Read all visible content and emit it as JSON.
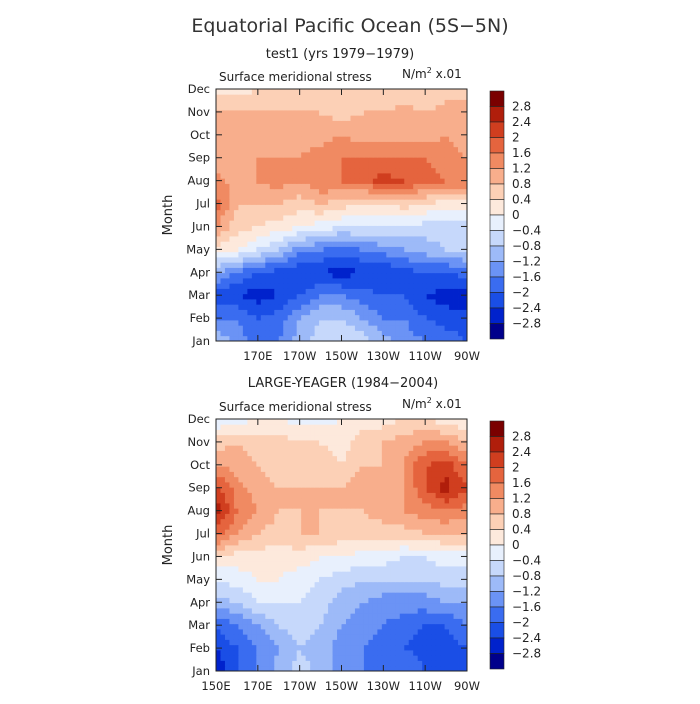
{
  "main_title": "Equatorial Pacific Ocean (5S−5N)",
  "color_scale": [
    "#00008b",
    "#0022cc",
    "#1a4ee6",
    "#3a6cf0",
    "#6b93f5",
    "#9dbaf8",
    "#c6d8fb",
    "#e8f0fd",
    "#fde9dc",
    "#fcd0b6",
    "#f8ae8c",
    "#f08a62",
    "#e5643e",
    "#d03e1f",
    "#b01e0b",
    "#7a0000"
  ],
  "chart_data": [
    {
      "type": "heatmap",
      "title": "test1 (yrs 1979−1979)",
      "variable": "Surface meridional stress",
      "units_prefix": "N/m",
      "units_sup": "2",
      "units_suffix": " x.01",
      "ylabel": "Month",
      "x_ticks": [
        "170E",
        "170W",
        "150W",
        "130W",
        "110W",
        "90W"
      ],
      "y_ticks": [
        "Jan",
        "Feb",
        "Mar",
        "Apr",
        "May",
        "Jun",
        "Jul",
        "Aug",
        "Sep",
        "Oct",
        "Nov",
        "Dec"
      ],
      "colorbar_labels": [
        "2.8",
        "2.4",
        "2",
        "1.6",
        "1.2",
        "0.8",
        "0.4",
        "0",
        "−0.4",
        "−0.8",
        "−1.2",
        "−1.6",
        "−2",
        "−2.4",
        "−2.8"
      ],
      "levels": [
        -2.8,
        -2.4,
        -2.0,
        -1.6,
        -1.2,
        -0.8,
        -0.4,
        0,
        0.4,
        0.8,
        1.2,
        1.6,
        2.0,
        2.4,
        2.8
      ],
      "lon_range": [
        150,
        270
      ],
      "values": [
        [
          -0.8,
          -1.4,
          -1.8,
          -1.6,
          -1.0,
          -0.6,
          -0.4,
          -0.6,
          -1.0,
          -1.4,
          -1.6,
          -1.8,
          -2.0
        ],
        [
          -1.8,
          -1.6,
          -2.0,
          -1.8,
          -1.2,
          -0.8,
          -0.8,
          -1.2,
          -1.6,
          -1.6,
          -2.0,
          -2.2,
          -2.2
        ],
        [
          -2.2,
          -2.4,
          -2.6,
          -2.4,
          -2.0,
          -1.6,
          -1.6,
          -1.8,
          -2.0,
          -2.0,
          -2.4,
          -2.6,
          -2.8
        ],
        [
          -1.2,
          -1.6,
          -2.0,
          -2.2,
          -2.4,
          -2.4,
          -2.6,
          -2.4,
          -2.4,
          -2.2,
          -2.0,
          -2.0,
          -1.8
        ],
        [
          0.2,
          0.0,
          -0.4,
          -0.8,
          -1.4,
          -1.6,
          -1.8,
          -1.6,
          -1.4,
          -1.2,
          -1.0,
          -0.8,
          -0.6
        ],
        [
          1.2,
          0.6,
          0.4,
          0.2,
          0.0,
          -0.2,
          -0.4,
          -0.4,
          -0.4,
          -0.4,
          -0.6,
          -0.6,
          -0.6
        ],
        [
          1.8,
          0.8,
          0.8,
          0.8,
          0.6,
          0.8,
          0.6,
          0.4,
          0.4,
          0.6,
          0.4,
          0.2,
          0.2
        ],
        [
          1.4,
          1.0,
          1.2,
          1.4,
          1.2,
          1.6,
          1.6,
          1.8,
          2.2,
          2.0,
          1.8,
          1.6,
          1.6
        ],
        [
          1.0,
          0.8,
          1.2,
          1.2,
          1.2,
          1.4,
          1.6,
          1.6,
          1.6,
          1.6,
          1.6,
          1.4,
          1.2
        ],
        [
          0.8,
          1.0,
          1.0,
          1.2,
          1.0,
          1.0,
          1.2,
          1.0,
          1.0,
          1.0,
          1.0,
          1.2,
          1.0
        ],
        [
          0.8,
          0.8,
          0.8,
          0.8,
          0.8,
          0.8,
          0.6,
          0.8,
          0.8,
          1.0,
          0.8,
          1.0,
          1.0
        ],
        [
          0.2,
          0.2,
          0.4,
          0.4,
          0.4,
          0.4,
          0.4,
          0.4,
          0.4,
          0.4,
          0.4,
          0.6,
          0.6
        ]
      ]
    },
    {
      "type": "heatmap",
      "title": "LARGE-YEAGER (1984−2004)",
      "variable": "Surface meridional stress",
      "units_prefix": "N/m",
      "units_sup": "2",
      "units_suffix": " x.01",
      "ylabel": "Month",
      "x_ticks": [
        "150E",
        "170E",
        "170W",
        "150W",
        "130W",
        "110W",
        "90W"
      ],
      "y_ticks": [
        "Jan",
        "Feb",
        "Mar",
        "Apr",
        "May",
        "Jun",
        "Jul",
        "Aug",
        "Sep",
        "Oct",
        "Nov",
        "Dec"
      ],
      "colorbar_labels": [
        "2.8",
        "2.4",
        "2",
        "1.6",
        "1.2",
        "0.8",
        "0.4",
        "0",
        "−0.4",
        "−0.8",
        "−1.2",
        "−1.6",
        "−2",
        "−2.4",
        "−2.8"
      ],
      "levels": [
        -2.8,
        -2.4,
        -2.0,
        -1.6,
        -1.2,
        -0.8,
        -0.4,
        0,
        0.4,
        0.8,
        1.2,
        1.6,
        2.0,
        2.4,
        2.8
      ],
      "lon_range": [
        150,
        270
      ],
      "values": [
        [
          -2.8,
          -2.0,
          -1.6,
          -1.0,
          -0.6,
          -1.0,
          -1.4,
          -1.6,
          -1.6,
          -1.6,
          -2.0,
          -2.2,
          -2.0
        ],
        [
          -2.4,
          -2.0,
          -1.6,
          -1.2,
          -0.8,
          -1.0,
          -1.4,
          -1.6,
          -1.8,
          -2.0,
          -2.2,
          -2.2,
          -2.0
        ],
        [
          -2.0,
          -1.6,
          -1.2,
          -0.8,
          -0.6,
          -0.8,
          -1.2,
          -1.4,
          -1.6,
          -1.8,
          -2.0,
          -2.0,
          -1.6
        ],
        [
          -1.0,
          -0.8,
          -0.4,
          -0.4,
          -0.4,
          -0.6,
          -1.0,
          -1.2,
          -1.4,
          -1.4,
          -1.4,
          -1.2,
          -1.2
        ],
        [
          -0.4,
          -0.2,
          0.0,
          0.0,
          -0.2,
          -0.4,
          -0.6,
          -0.8,
          -0.8,
          -0.8,
          -0.8,
          -0.6,
          -0.6
        ],
        [
          0.4,
          0.2,
          0.2,
          0.2,
          0.2,
          0.0,
          0.0,
          -0.2,
          -0.2,
          -0.4,
          -0.4,
          -0.2,
          -0.2
        ],
        [
          1.8,
          1.2,
          0.8,
          0.6,
          0.8,
          0.8,
          0.6,
          0.6,
          0.6,
          0.6,
          0.8,
          0.8,
          0.8
        ],
        [
          2.6,
          1.6,
          1.2,
          0.8,
          0.8,
          0.8,
          0.8,
          0.8,
          1.0,
          1.2,
          1.4,
          1.6,
          1.4
        ],
        [
          2.2,
          1.4,
          1.0,
          0.8,
          0.8,
          0.8,
          0.8,
          1.2,
          0.8,
          1.2,
          2.0,
          2.6,
          2.0
        ],
        [
          1.2,
          1.0,
          0.8,
          0.6,
          0.6,
          0.6,
          0.4,
          0.8,
          0.8,
          1.2,
          2.0,
          2.2,
          1.6
        ],
        [
          0.6,
          0.8,
          0.6,
          0.6,
          0.4,
          0.4,
          0.2,
          0.6,
          0.8,
          1.0,
          1.2,
          1.2,
          0.8
        ],
        [
          -0.4,
          -0.2,
          0.0,
          0.0,
          -0.2,
          -0.2,
          0.0,
          0.2,
          0.2,
          0.4,
          0.4,
          0.2,
          0.0
        ]
      ]
    }
  ]
}
